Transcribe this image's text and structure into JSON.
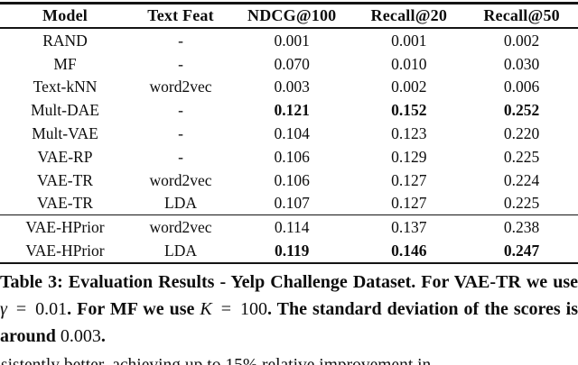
{
  "table": {
    "columns": [
      "Model",
      "Text Feat",
      "NDCG@100",
      "Recall@20",
      "Recall@50"
    ],
    "rows": [
      {
        "cells": [
          "RAND",
          "-",
          "0.001",
          "0.001",
          "0.002"
        ],
        "bold_metrics": false,
        "group_start": false
      },
      {
        "cells": [
          "MF",
          "-",
          "0.070",
          "0.010",
          "0.030"
        ],
        "bold_metrics": false,
        "group_start": false
      },
      {
        "cells": [
          "Text-kNN",
          "word2vec",
          "0.003",
          "0.002",
          "0.006"
        ],
        "bold_metrics": false,
        "group_start": false
      },
      {
        "cells": [
          "Mult-DAE",
          "-",
          "0.121",
          "0.152",
          "0.252"
        ],
        "bold_metrics": true,
        "group_start": false
      },
      {
        "cells": [
          "Mult-VAE",
          "-",
          "0.104",
          "0.123",
          "0.220"
        ],
        "bold_metrics": false,
        "group_start": false
      },
      {
        "cells": [
          "VAE-RP",
          "-",
          "0.106",
          "0.129",
          "0.225"
        ],
        "bold_metrics": false,
        "group_start": false
      },
      {
        "cells": [
          "VAE-TR",
          "word2vec",
          "0.106",
          "0.127",
          "0.224"
        ],
        "bold_metrics": false,
        "group_start": false
      },
      {
        "cells": [
          "VAE-TR",
          "LDA",
          "0.107",
          "0.127",
          "0.225"
        ],
        "bold_metrics": false,
        "group_start": false
      },
      {
        "cells": [
          "VAE-HPrior",
          "word2vec",
          "0.114",
          "0.137",
          "0.238"
        ],
        "bold_metrics": false,
        "group_start": true
      },
      {
        "cells": [
          "VAE-HPrior",
          "LDA",
          "0.119",
          "0.146",
          "0.247"
        ],
        "bold_metrics": true,
        "group_start": false
      }
    ]
  },
  "caption": {
    "segments": [
      {
        "text": "Table 3: Evaluation Results - Yelp Challenge Dataset. For VAE-TR we use ",
        "style": "bold"
      },
      {
        "text": "γ",
        "style": "italic"
      },
      {
        "text": " = 0.01",
        "style": "regular"
      },
      {
        "text": ". For MF we use ",
        "style": "bold"
      },
      {
        "text": "K",
        "style": "italic"
      },
      {
        "text": " = 100",
        "style": "regular"
      },
      {
        "text": ". The standard deviation of the scores is around ",
        "style": "bold"
      },
      {
        "text": "0.003",
        "style": "regular"
      },
      {
        "text": ".",
        "style": "bold"
      }
    ]
  },
  "body_text": {
    "partial_line": "sistently better, achieving up to 15% relative improvement in"
  },
  "colors": {
    "text": "#0d0d0d",
    "background": "#ffffff",
    "rule": "#141414"
  }
}
